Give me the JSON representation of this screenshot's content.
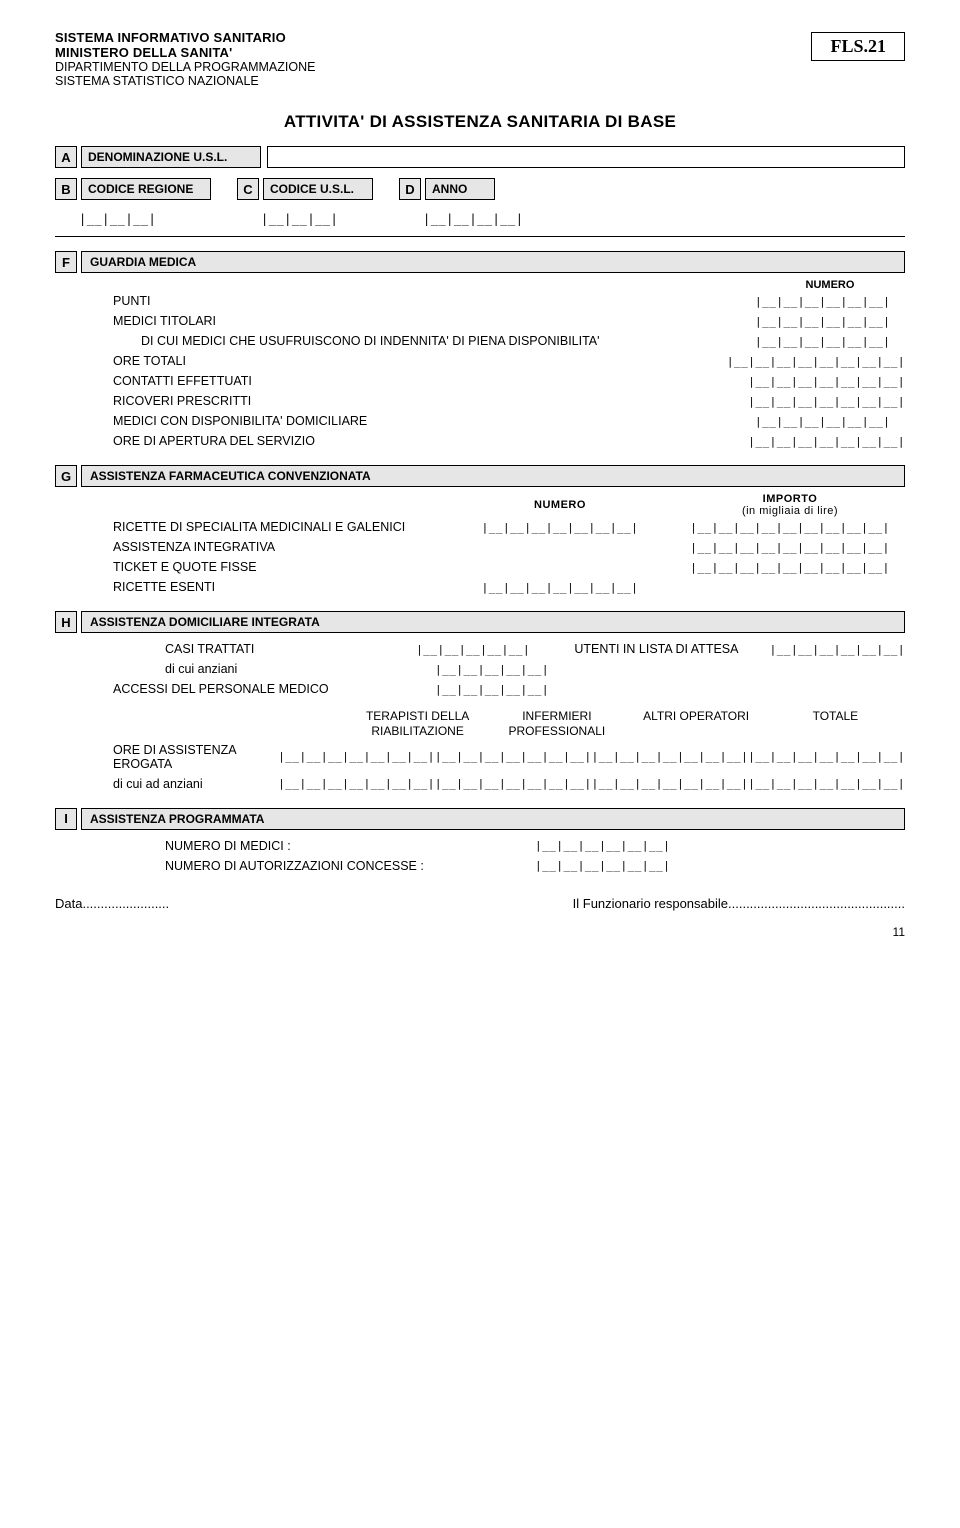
{
  "header": {
    "line1": "SISTEMA INFORMATIVO SANITARIO",
    "line2": "MINISTERO DELLA SANITA'",
    "line3": "DIPARTIMENTO DELLA PROGRAMMAZIONE",
    "line4": "SISTEMA STATISTICO NAZIONALE",
    "form_code": "FLS.21"
  },
  "title": "ATTIVITA' DI ASSISTENZA SANITARIA DI BASE",
  "rowA": {
    "letter": "A",
    "label": "DENOMINAZIONE U.S.L."
  },
  "rowB": {
    "letter": "B",
    "label": "CODICE REGIONE",
    "ticks": "|__|__|__|"
  },
  "rowC": {
    "letter": "C",
    "label": "CODICE U.S.L.",
    "ticks": "|__|__|__|"
  },
  "rowD": {
    "letter": "D",
    "label": "ANNO",
    "ticks": "|__|__|__|__|"
  },
  "sectionF": {
    "letter": "F",
    "label": "GUARDIA MEDICA",
    "col_header": "NUMERO",
    "rows": [
      {
        "label": "PUNTI",
        "ticks": "|__|__|__|__|__|__|",
        "sub": false
      },
      {
        "label": "MEDICI TITOLARI",
        "ticks": "|__|__|__|__|__|__|",
        "sub": false
      },
      {
        "label": "DI CUI MEDICI CHE USUFRUISCONO DI INDENNITA' DI PIENA DISPONIBILITA'",
        "ticks": "|__|__|__|__|__|__|",
        "sub": true
      },
      {
        "label": "ORE TOTALI",
        "ticks": "|__|__|__|__|__|__|__|__|",
        "sub": false
      },
      {
        "label": "CONTATTI  EFFETTUATI",
        "ticks": "|__|__|__|__|__|__|__|",
        "sub": false
      },
      {
        "label": "RICOVERI PRESCRITTI",
        "ticks": "|__|__|__|__|__|__|__|",
        "sub": false
      },
      {
        "label": "MEDICI CON DISPONIBILITA' DOMICILIARE",
        "ticks": "|__|__|__|__|__|__|",
        "sub": false
      },
      {
        "label": "ORE DI APERTURA DEL SERVIZIO",
        "ticks": "|__|__|__|__|__|__|__|",
        "sub": false
      }
    ]
  },
  "sectionG": {
    "letter": "G",
    "label": "ASSISTENZA FARMACEUTICA CONVENZIONATA",
    "col1_header": "NUMERO",
    "col2_header": "IMPORTO",
    "col2_sub": "(in migliaia di lire)",
    "rows": [
      {
        "label": "RICETTE DI SPECIALITA MEDICINALI E GALENICI",
        "a": "|__|__|__|__|__|__|__|",
        "b": "|__|__|__|__|__|__|__|__|__|"
      },
      {
        "label": "ASSISTENZA INTEGRATIVA",
        "a": "",
        "b": "|__|__|__|__|__|__|__|__|__|"
      },
      {
        "label": "TICKET E QUOTE FISSE",
        "a": "",
        "b": "|__|__|__|__|__|__|__|__|__|"
      },
      {
        "label": "RICETTE ESENTI",
        "a": "|__|__|__|__|__|__|__|",
        "b": ""
      }
    ]
  },
  "sectionH": {
    "letter": "H",
    "label": "ASSISTENZA DOMICILIARE INTEGRATA",
    "casi_trattati_label": "CASI TRATTATI",
    "casi_trattati_ticks": "|__|__|__|__|__|",
    "utenti_label": "UTENTI IN LISTA DI ATTESA",
    "utenti_ticks": "|__|__|__|__|__|__|",
    "anziani_label": "di cui anziani",
    "anziani_ticks": "|__|__|__|__|__|",
    "accessi_label": "ACCESSI DEL PERSONALE MEDICO",
    "accessi_ticks": "|__|__|__|__|__|",
    "cols": [
      "TERAPISTI DELLA RIABILITAZIONE",
      "INFERMIERI PROFESSIONALI",
      "ALTRI OPERATORI",
      "TOTALE"
    ],
    "data_rows": [
      {
        "label": "ORE DI ASSISTENZA EROGATA",
        "cells": [
          "|__|__|__|__|__|__|__|",
          "|__|__|__|__|__|__|__|",
          "|__|__|__|__|__|__|__|",
          "|__|__|__|__|__|__|__|"
        ]
      },
      {
        "label": "di cui ad anziani",
        "cells": [
          "|__|__|__|__|__|__|__|",
          "|__|__|__|__|__|__|__|",
          "|__|__|__|__|__|__|__|",
          "|__|__|__|__|__|__|__|"
        ]
      }
    ]
  },
  "sectionI": {
    "letter": "I",
    "label": "ASSISTENZA PROGRAMMATA",
    "rows": [
      {
        "label": "NUMERO DI MEDICI :",
        "ticks": "|__|__|__|__|__|__|"
      },
      {
        "label": "NUMERO DI AUTORIZZAZIONI CONCESSE :",
        "ticks": "|__|__|__|__|__|__|"
      }
    ]
  },
  "footer": {
    "data_label": "Data........................",
    "signer_label": "Il Funzionario responsabile.................................................",
    "page": "11"
  },
  "colors": {
    "cell_bg": "#e6e6e6",
    "border": "#000000",
    "page_bg": "#ffffff"
  }
}
